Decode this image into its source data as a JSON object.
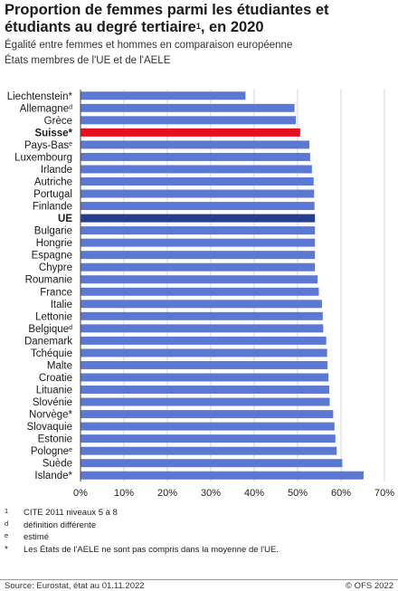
{
  "header": {
    "title_line1": "Proportion de femmes parmi les étudiantes et",
    "title_line2": "étudiants au degré tertiaire",
    "title_sup": "1",
    "title_end": ", en 2020",
    "subtitle1": "Égalité entre femmes et hommes en comparaison européenne",
    "subtitle2": "États membres de l'UE et de l'AELE"
  },
  "colors": {
    "bar": "#5b79d3",
    "highlight_ch": "#e3101d",
    "highlight_eu": "#253f8c",
    "grid": "#d6d6d6"
  },
  "chart_data": {
    "type": "bar",
    "orientation": "horizontal",
    "categories": [
      {
        "label": "Liechtenstein",
        "mark": "*",
        "value": 38,
        "bold": false,
        "color": "bar"
      },
      {
        "label": "Allemagne",
        "mark": "d",
        "value": 49.3,
        "bold": false,
        "color": "bar"
      },
      {
        "label": "Grèce",
        "mark": "",
        "value": 49.6,
        "bold": false,
        "color": "bar"
      },
      {
        "label": "Suisse",
        "mark": "*",
        "value": 50.6,
        "bold": true,
        "color": "highlight_ch"
      },
      {
        "label": "Pays-Bas",
        "mark": "e",
        "value": 52.7,
        "bold": false,
        "color": "bar"
      },
      {
        "label": "Luxembourg",
        "mark": "",
        "value": 52.9,
        "bold": false,
        "color": "bar"
      },
      {
        "label": "Irlande",
        "mark": "",
        "value": 53.3,
        "bold": false,
        "color": "bar"
      },
      {
        "label": "Autriche",
        "mark": "",
        "value": 53.7,
        "bold": false,
        "color": "bar"
      },
      {
        "label": "Portugal",
        "mark": "",
        "value": 53.8,
        "bold": false,
        "color": "bar"
      },
      {
        "label": "Finlande",
        "mark": "",
        "value": 53.9,
        "bold": false,
        "color": "bar"
      },
      {
        "label": "UE",
        "mark": "",
        "value": 54.0,
        "bold": true,
        "color": "highlight_eu"
      },
      {
        "label": "Bulgarie",
        "mark": "",
        "value": 54.0,
        "bold": false,
        "color": "bar"
      },
      {
        "label": "Hongrie",
        "mark": "",
        "value": 54.0,
        "bold": false,
        "color": "bar"
      },
      {
        "label": "Espagne",
        "mark": "",
        "value": 54.0,
        "bold": false,
        "color": "bar"
      },
      {
        "label": "Chypre",
        "mark": "",
        "value": 54.0,
        "bold": false,
        "color": "bar"
      },
      {
        "label": "Roumanie",
        "mark": "",
        "value": 54.6,
        "bold": false,
        "color": "bar"
      },
      {
        "label": "France",
        "mark": "",
        "value": 54.9,
        "bold": false,
        "color": "bar"
      },
      {
        "label": "Italie",
        "mark": "",
        "value": 55.6,
        "bold": false,
        "color": "bar"
      },
      {
        "label": "Lettonie",
        "mark": "",
        "value": 55.8,
        "bold": false,
        "color": "bar"
      },
      {
        "label": "Belgique",
        "mark": "d",
        "value": 55.9,
        "bold": false,
        "color": "bar"
      },
      {
        "label": "Danemark",
        "mark": "",
        "value": 56.6,
        "bold": false,
        "color": "bar"
      },
      {
        "label": "Tchéquie",
        "mark": "",
        "value": 56.8,
        "bold": false,
        "color": "bar"
      },
      {
        "label": "Malte",
        "mark": "",
        "value": 56.9,
        "bold": false,
        "color": "bar"
      },
      {
        "label": "Croatie",
        "mark": "",
        "value": 57.1,
        "bold": false,
        "color": "bar"
      },
      {
        "label": "Lituanie",
        "mark": "",
        "value": 57.3,
        "bold": false,
        "color": "bar"
      },
      {
        "label": "Slovénie",
        "mark": "",
        "value": 57.4,
        "bold": false,
        "color": "bar"
      },
      {
        "label": "Norvège",
        "mark": "*",
        "value": 58.2,
        "bold": false,
        "color": "bar"
      },
      {
        "label": "Slovaquie",
        "mark": "",
        "value": 58.5,
        "bold": false,
        "color": "bar"
      },
      {
        "label": "Estonie",
        "mark": "",
        "value": 58.7,
        "bold": false,
        "color": "bar"
      },
      {
        "label": "Pologne",
        "mark": "e",
        "value": 59.0,
        "bold": false,
        "color": "bar"
      },
      {
        "label": "Suède",
        "mark": "",
        "value": 60.3,
        "bold": false,
        "color": "bar"
      },
      {
        "label": "Islande",
        "mark": "*",
        "value": 65.2,
        "bold": false,
        "color": "bar"
      }
    ],
    "xlim": [
      0,
      70
    ],
    "ticks": [
      "0%",
      "10%",
      "20%",
      "30%",
      "40%",
      "50%",
      "60%",
      "70%"
    ],
    "grid": true
  },
  "notes": [
    {
      "mark": "1",
      "text": "CITE 2011 niveaux 5 à 8"
    },
    {
      "mark": "d",
      "text": "définition différente"
    },
    {
      "mark": "e",
      "text": "estimé"
    },
    {
      "mark": "*",
      "text": "Les États de l'AELE ne sont pas compris dans la moyenne de l'UE."
    }
  ],
  "footer": {
    "source": "Source: Eurostat, état au 01.11.2022",
    "copyright": "© OFS 2022"
  }
}
